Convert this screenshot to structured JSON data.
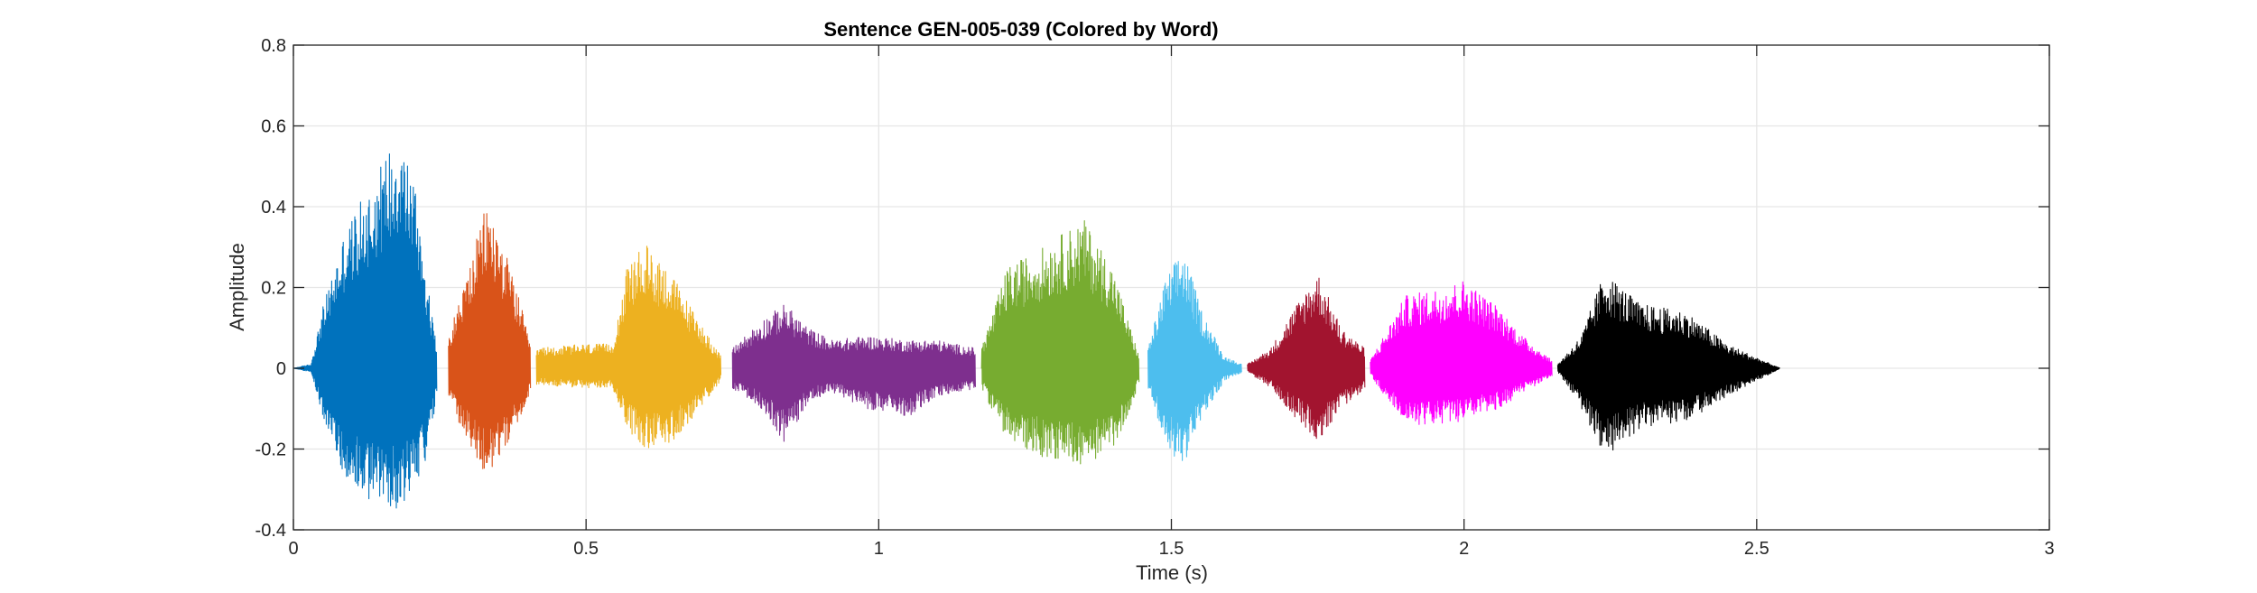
{
  "chart_data": {
    "type": "line",
    "title": "Sentence GEN-005-039 (Colored by Word)",
    "xlabel": "Time (s)",
    "ylabel": "Amplitude",
    "xlim": [
      0,
      3
    ],
    "ylim": [
      -0.4,
      0.8
    ],
    "xticks": [
      0,
      0.5,
      1,
      1.5,
      2,
      2.5,
      3
    ],
    "xtick_labels": [
      "0",
      "0.5",
      "1",
      "1.5",
      "2",
      "2.5",
      "3"
    ],
    "yticks": [
      -0.4,
      -0.2,
      0,
      0.2,
      0.4,
      0.6,
      0.8
    ],
    "ytick_labels": [
      "-0.4",
      "-0.2",
      "0",
      "0.2",
      "0.4",
      "0.6",
      "0.8"
    ],
    "grid": true,
    "series": [
      {
        "color": "#0072BD",
        "t_start": 0.0,
        "t_end": 0.245,
        "envelope": [
          [
            0.0,
            0.0,
            0.0
          ],
          [
            0.03,
            0.01,
            -0.01
          ],
          [
            0.05,
            0.15,
            -0.12
          ],
          [
            0.09,
            0.35,
            -0.28
          ],
          [
            0.13,
            0.45,
            -0.33
          ],
          [
            0.18,
            0.6,
            -0.35
          ],
          [
            0.21,
            0.45,
            -0.28
          ],
          [
            0.23,
            0.2,
            -0.22
          ],
          [
            0.245,
            0.05,
            -0.05
          ]
        ]
      },
      {
        "color": "#D95319",
        "t_start": 0.265,
        "t_end": 0.405,
        "envelope": [
          [
            0.265,
            0.08,
            -0.08
          ],
          [
            0.3,
            0.25,
            -0.2
          ],
          [
            0.33,
            0.41,
            -0.27
          ],
          [
            0.36,
            0.3,
            -0.2
          ],
          [
            0.39,
            0.15,
            -0.12
          ],
          [
            0.405,
            0.05,
            -0.05
          ]
        ]
      },
      {
        "color": "#EDB120",
        "t_start": 0.415,
        "t_end": 0.73,
        "envelope": [
          [
            0.415,
            0.05,
            -0.04
          ],
          [
            0.5,
            0.06,
            -0.05
          ],
          [
            0.545,
            0.06,
            -0.05
          ],
          [
            0.57,
            0.25,
            -0.15
          ],
          [
            0.6,
            0.31,
            -0.2
          ],
          [
            0.64,
            0.25,
            -0.19
          ],
          [
            0.68,
            0.15,
            -0.13
          ],
          [
            0.73,
            0.03,
            -0.03
          ]
        ]
      },
      {
        "color": "#7E2F8E",
        "t_start": 0.75,
        "t_end": 1.165,
        "envelope": [
          [
            0.75,
            0.05,
            -0.05
          ],
          [
            0.8,
            0.12,
            -0.1
          ],
          [
            0.84,
            0.16,
            -0.19
          ],
          [
            0.88,
            0.1,
            -0.08
          ],
          [
            0.92,
            0.07,
            -0.06
          ],
          [
            0.98,
            0.08,
            -0.1
          ],
          [
            1.05,
            0.07,
            -0.12
          ],
          [
            1.1,
            0.07,
            -0.07
          ],
          [
            1.165,
            0.05,
            -0.05
          ]
        ]
      },
      {
        "color": "#77AC30",
        "t_start": 1.175,
        "t_end": 1.445,
        "envelope": [
          [
            1.175,
            0.05,
            -0.05
          ],
          [
            1.22,
            0.25,
            -0.18
          ],
          [
            1.28,
            0.3,
            -0.22
          ],
          [
            1.35,
            0.37,
            -0.24
          ],
          [
            1.4,
            0.25,
            -0.2
          ],
          [
            1.43,
            0.1,
            -0.1
          ],
          [
            1.445,
            0.03,
            -0.03
          ]
        ]
      },
      {
        "color": "#4DBEEE",
        "t_start": 1.46,
        "t_end": 1.62,
        "envelope": [
          [
            1.46,
            0.05,
            -0.05
          ],
          [
            1.49,
            0.22,
            -0.2
          ],
          [
            1.52,
            0.3,
            -0.24
          ],
          [
            1.55,
            0.15,
            -0.13
          ],
          [
            1.59,
            0.03,
            -0.03
          ],
          [
            1.62,
            0.01,
            -0.01
          ]
        ]
      },
      {
        "color": "#A2142F",
        "t_start": 1.63,
        "t_end": 1.83,
        "envelope": [
          [
            1.63,
            0.01,
            -0.01
          ],
          [
            1.67,
            0.05,
            -0.05
          ],
          [
            1.71,
            0.15,
            -0.12
          ],
          [
            1.75,
            0.24,
            -0.18
          ],
          [
            1.79,
            0.1,
            -0.1
          ],
          [
            1.83,
            0.05,
            -0.05
          ]
        ]
      },
      {
        "color": "#FF00FF",
        "t_start": 1.84,
        "t_end": 2.15,
        "envelope": [
          [
            1.84,
            0.02,
            -0.02
          ],
          [
            1.9,
            0.18,
            -0.14
          ],
          [
            1.96,
            0.2,
            -0.14
          ],
          [
            2.0,
            0.22,
            -0.13
          ],
          [
            2.06,
            0.15,
            -0.1
          ],
          [
            2.1,
            0.08,
            -0.06
          ],
          [
            2.15,
            0.02,
            -0.02
          ]
        ]
      },
      {
        "color": "#000000",
        "t_start": 2.16,
        "t_end": 2.54,
        "envelope": [
          [
            2.16,
            0.01,
            -0.01
          ],
          [
            2.2,
            0.08,
            -0.1
          ],
          [
            2.24,
            0.24,
            -0.22
          ],
          [
            2.3,
            0.16,
            -0.15
          ],
          [
            2.38,
            0.14,
            -0.13
          ],
          [
            2.45,
            0.06,
            -0.07
          ],
          [
            2.54,
            0.0,
            0.0
          ]
        ]
      }
    ]
  }
}
